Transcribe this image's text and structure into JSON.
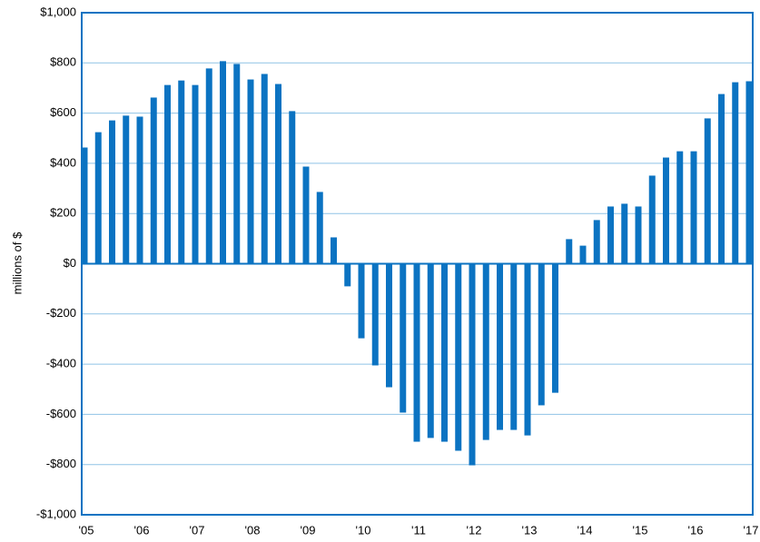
{
  "chart_data": {
    "type": "bar",
    "y_label": "millions of $",
    "categories": [
      "'05",
      null,
      null,
      null,
      "'06",
      null,
      null,
      null,
      "'07",
      null,
      null,
      null,
      "'08",
      null,
      null,
      null,
      "'09",
      null,
      null,
      null,
      "'10",
      null,
      null,
      null,
      "'11",
      null,
      null,
      null,
      "'12",
      null,
      null,
      null,
      "'13",
      null,
      null,
      null,
      "'14",
      null,
      null,
      null,
      "'15",
      null,
      null,
      null,
      "'16",
      null,
      null,
      null,
      "'17"
    ],
    "values": [
      463,
      524,
      571,
      590,
      586,
      662,
      712,
      730,
      712,
      778,
      807,
      796,
      734,
      756,
      716,
      608,
      387,
      286,
      105,
      -90,
      -297,
      -405,
      -492,
      -593,
      -709,
      -694,
      -709,
      -745,
      -803,
      -702,
      -662,
      -662,
      -684,
      -564,
      -514,
      98,
      72,
      174,
      228,
      239,
      228,
      351,
      423,
      448,
      448,
      579,
      676,
      723,
      727
    ],
    "color": "#0b73c2",
    "ylim": [
      -1000,
      1000
    ],
    "yticks": [
      {
        "value": -1000,
        "label": "-$1,000"
      },
      {
        "value": -800,
        "label": "-$800"
      },
      {
        "value": -600,
        "label": "-$600"
      },
      {
        "value": -400,
        "label": "-$400"
      },
      {
        "value": -200,
        "label": "-$200"
      },
      {
        "value": 0,
        "label": "$0"
      },
      {
        "value": 200,
        "label": "$200"
      },
      {
        "value": 400,
        "label": "$400"
      },
      {
        "value": 600,
        "label": "$600"
      },
      {
        "value": 800,
        "label": "$800"
      },
      {
        "value": 1000,
        "label": "$1,000"
      }
    ],
    "grid": true
  }
}
